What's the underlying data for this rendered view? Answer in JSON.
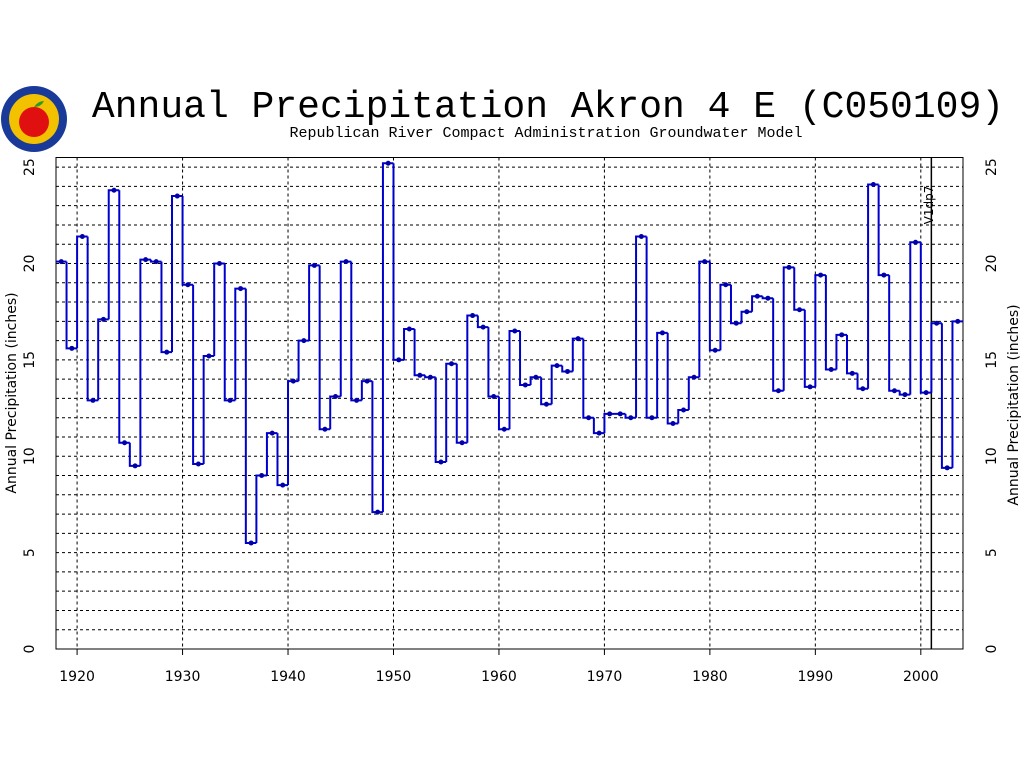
{
  "chart_data": {
    "type": "step",
    "title": "Annual Precipitation Akron 4 E (C050109)",
    "subtitle": "Republican River Compact Administration Groundwater Model",
    "y_label": "Annual Precipitation (inches)",
    "annotation": {
      "text": "V1dp7",
      "x": 2001
    },
    "xlim": [
      1918,
      2004
    ],
    "xticks": [
      1920,
      1930,
      1940,
      1950,
      1960,
      1970,
      1980,
      1990,
      2000
    ],
    "ylim": [
      0,
      25.5
    ],
    "yticks": [
      0,
      5,
      10,
      15,
      20,
      25
    ],
    "y_minor_ticks": [
      1,
      2,
      3,
      4,
      6,
      7,
      8,
      9,
      11,
      12,
      13,
      14,
      16,
      17,
      18,
      19,
      21,
      22,
      23,
      24
    ],
    "grid": true,
    "color": "#0000cc",
    "x": [
      1918,
      1919,
      1920,
      1921,
      1922,
      1923,
      1924,
      1925,
      1926,
      1927,
      1928,
      1929,
      1930,
      1931,
      1932,
      1933,
      1934,
      1935,
      1936,
      1937,
      1938,
      1939,
      1940,
      1941,
      1942,
      1943,
      1944,
      1945,
      1946,
      1947,
      1948,
      1949,
      1950,
      1951,
      1952,
      1953,
      1954,
      1955,
      1956,
      1957,
      1958,
      1959,
      1960,
      1961,
      1962,
      1963,
      1964,
      1965,
      1966,
      1967,
      1968,
      1969,
      1970,
      1971,
      1972,
      1973,
      1974,
      1975,
      1976,
      1977,
      1978,
      1979,
      1980,
      1981,
      1982,
      1983,
      1984,
      1985,
      1986,
      1987,
      1988,
      1989,
      1990,
      1991,
      1992,
      1993,
      1994,
      1995,
      1996,
      1997,
      1998,
      1999,
      2000,
      2001,
      2002,
      2003
    ],
    "values": [
      20.1,
      15.6,
      21.4,
      12.9,
      17.1,
      23.8,
      10.7,
      9.5,
      20.2,
      20.1,
      15.4,
      23.5,
      18.9,
      9.6,
      15.2,
      20.0,
      12.9,
      18.7,
      5.5,
      9.0,
      11.2,
      8.5,
      13.9,
      16.0,
      19.9,
      11.4,
      13.1,
      20.1,
      12.9,
      13.9,
      7.1,
      25.2,
      15.0,
      16.6,
      14.2,
      14.1,
      9.7,
      14.8,
      10.7,
      17.3,
      16.7,
      13.1,
      11.4,
      16.5,
      13.7,
      14.1,
      12.7,
      14.7,
      14.4,
      16.1,
      12.0,
      11.2,
      12.2,
      12.2,
      12.0,
      21.4,
      12.0,
      16.4,
      11.7,
      12.4,
      14.1,
      20.1,
      15.5,
      18.9,
      16.9,
      17.5,
      18.3,
      18.2,
      13.4,
      19.8,
      17.6,
      13.6,
      19.4,
      14.5,
      16.3,
      14.3,
      13.5,
      24.1,
      19.4,
      13.4,
      13.2,
      21.1,
      13.3,
      16.9,
      9.4,
      17.0
    ]
  }
}
